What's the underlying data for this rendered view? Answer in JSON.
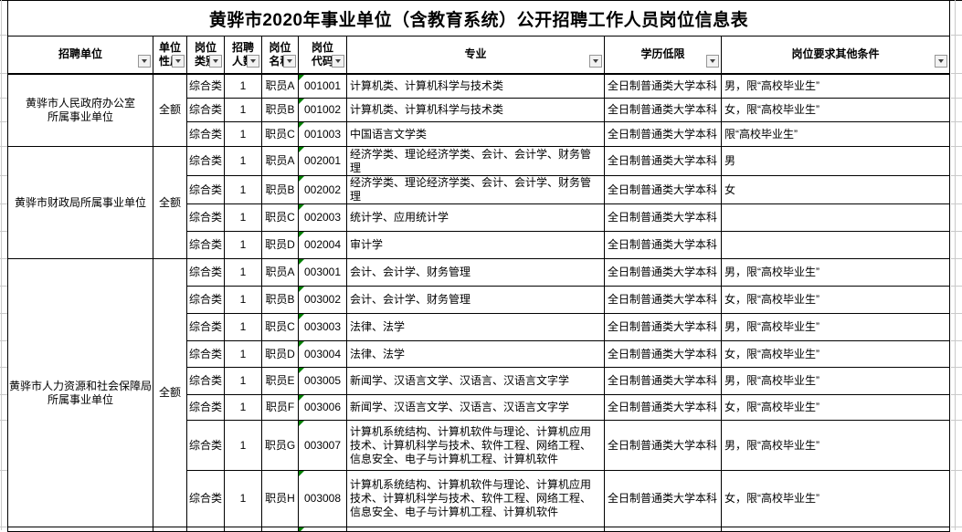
{
  "title": "黄骅市2020年事业单位（含教育系统）公开招聘工作人员岗位信息表",
  "columns": [
    {
      "key": "unit",
      "label": "招聘单位"
    },
    {
      "key": "nature",
      "label": "单位性质"
    },
    {
      "key": "category",
      "label": "岗位类别"
    },
    {
      "key": "count",
      "label": "招聘人数"
    },
    {
      "key": "name",
      "label": "岗位名称"
    },
    {
      "key": "code",
      "label": "岗位代码"
    },
    {
      "key": "major",
      "label": "专业"
    },
    {
      "key": "degree",
      "label": "学历低限"
    },
    {
      "key": "other",
      "label": "岗位要求其他条件"
    }
  ],
  "icons": {
    "filter_dropdown": "chevron-down",
    "cell_flag": "green-corner-triangle"
  },
  "colors": {
    "grid_border": "#000000",
    "faint_gridline": "#c9c9c9",
    "error_indicator": "#008000",
    "filter_button_bg": "#f2f2f2"
  },
  "groups": [
    {
      "unit_lines": [
        "黄骅市人民政府办公室",
        "所属事业单位"
      ],
      "nature": "全额",
      "rows": [
        {
          "category": "综合类",
          "count": "1",
          "name": "职员A",
          "code": "001001",
          "major": "计算机类、计算机科学与技术类",
          "degree": "全日制普通类大学本科",
          "other": "男，限“高校毕业生”"
        },
        {
          "category": "综合类",
          "count": "1",
          "name": "职员B",
          "code": "001002",
          "major": "计算机类、计算机科学与技术类",
          "degree": "全日制普通类大学本科",
          "other": "女，限“高校毕业生”"
        },
        {
          "category": "综合类",
          "count": "1",
          "name": "职员C",
          "code": "001003",
          "major": "中国语言文学类",
          "degree": "全日制普通类大学本科",
          "other": "限“高校毕业生”"
        }
      ]
    },
    {
      "unit_lines": [
        "黄骅市财政局所属事业单位"
      ],
      "nature": "全额",
      "rows": [
        {
          "category": "综合类",
          "count": "1",
          "name": "职员A",
          "code": "002001",
          "major": "经济学类、理论经济学类、会计、会计学、财务管理",
          "degree": "全日制普通类大学本科",
          "other": "男"
        },
        {
          "category": "综合类",
          "count": "1",
          "name": "职员B",
          "code": "002002",
          "major": "经济学类、理论经济学类、会计、会计学、财务管理",
          "degree": "全日制普通类大学本科",
          "other": "女"
        },
        {
          "category": "综合类",
          "count": "1",
          "name": "职员C",
          "code": "002003",
          "major": "统计学、应用统计学",
          "degree": "全日制普通类大学本科",
          "other": ""
        },
        {
          "category": "综合类",
          "count": "1",
          "name": "职员D",
          "code": "002004",
          "major": "审计学",
          "degree": "全日制普通类大学本科",
          "other": ""
        }
      ]
    },
    {
      "unit_lines": [
        "黄骅市人力资源和社会保障局",
        "所属事业单位"
      ],
      "nature": "全额",
      "rows": [
        {
          "category": "综合类",
          "count": "1",
          "name": "职员A",
          "code": "003001",
          "major": "会计、会计学、财务管理",
          "degree": "全日制普通类大学本科",
          "other": "男，限“高校毕业生”"
        },
        {
          "category": "综合类",
          "count": "1",
          "name": "职员B",
          "code": "003002",
          "major": "会计、会计学、财务管理",
          "degree": "全日制普通类大学本科",
          "other": "女，限“高校毕业生”"
        },
        {
          "category": "综合类",
          "count": "1",
          "name": "职员C",
          "code": "003003",
          "major": "法律、法学",
          "degree": "全日制普通类大学本科",
          "other": "男，限“高校毕业生”"
        },
        {
          "category": "综合类",
          "count": "1",
          "name": "职员D",
          "code": "003004",
          "major": "法律、法学",
          "degree": "全日制普通类大学本科",
          "other": "女，限“高校毕业生”"
        },
        {
          "category": "综合类",
          "count": "1",
          "name": "职员E",
          "code": "003005",
          "major": "新闻学、汉语言文学、汉语言、汉语言文字学",
          "degree": "全日制普通类大学本科",
          "other": "男，限“高校毕业生”"
        },
        {
          "category": "综合类",
          "count": "1",
          "name": "职员F",
          "code": "003006",
          "major": "新闻学、汉语言文学、汉语言、汉语言文字学",
          "degree": "全日制普通类大学本科",
          "other": "女，限“高校毕业生”"
        },
        {
          "category": "综合类",
          "count": "1",
          "name": "职员G",
          "code": "003007",
          "major": "计算机系统结构、计算机软件与理论、计算机应用技术、计算机科学与技术、软件工程、网络工程、信息安全、电子与计算机工程、计算机软件",
          "degree": "全日制普通类大学本科",
          "other": "男，限“高校毕业生”"
        },
        {
          "category": "综合类",
          "count": "1",
          "name": "职员H",
          "code": "003008",
          "major": "计算机系统结构、计算机软件与理论、计算机应用技术、计算机科学与技术、软件工程、网络工程、信息安全、电子与计算机工程、计算机软件",
          "degree": "全日制普通类大学本科",
          "other": "女，限“高校毕业生”"
        }
      ]
    }
  ]
}
